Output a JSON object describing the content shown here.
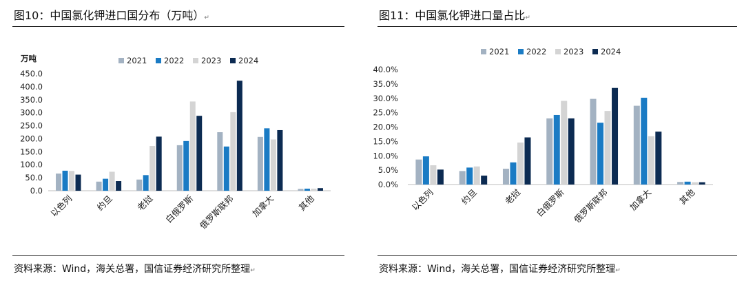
{
  "colors": {
    "2021": "#a3b2c2",
    "2022": "#1a7bc4",
    "2023": "#d4d4d4",
    "2024": "#0c2b52"
  },
  "left": {
    "title": "图10：中国氯化钾进口国分布（万吨）",
    "title_mark": "↵",
    "source": "资料来源：Wind，海关总署，国信证券经济研究所整理",
    "source_mark": "↵"
  },
  "right": {
    "title": "图11：中国氯化钾进口量占比",
    "title_mark": "↵",
    "source": "资料来源：Wind，海关总署，国信证券经济研究所整理",
    "source_mark": "↵"
  },
  "chart_data": [
    {
      "type": "bar",
      "unit_label": "万吨",
      "categories": [
        "以色列",
        "约旦",
        "老挝",
        "白俄罗斯",
        "俄罗斯联邦",
        "加拿大",
        "其他"
      ],
      "series": [
        {
          "name": "2021",
          "values": [
            66,
            35,
            43,
            175,
            225,
            207,
            7
          ]
        },
        {
          "name": "2022",
          "values": [
            77,
            46,
            60,
            191,
            170,
            240,
            8
          ]
        },
        {
          "name": "2023",
          "values": [
            76,
            73,
            172,
            343,
            302,
            197,
            8
          ]
        },
        {
          "name": "2024",
          "values": [
            62,
            37,
            208,
            288,
            423,
            233,
            10
          ]
        }
      ],
      "ylim": [
        0,
        450
      ],
      "yticks": [
        "0.0",
        "50.0",
        "100.0",
        "150.0",
        "200.0",
        "250.0",
        "300.0",
        "350.0",
        "400.0",
        "450.0"
      ],
      "legend": "top-center",
      "grid": false
    },
    {
      "type": "bar",
      "categories": [
        "以色列",
        "约旦",
        "老挝",
        "白俄罗斯",
        "俄罗斯联邦",
        "加拿大",
        "其他"
      ],
      "series": [
        {
          "name": "2021",
          "values": [
            8.7,
            4.7,
            5.5,
            23.0,
            29.8,
            27.4,
            0.9
          ]
        },
        {
          "name": "2022",
          "values": [
            9.8,
            5.9,
            7.7,
            24.2,
            21.5,
            30.2,
            1.0
          ]
        },
        {
          "name": "2023",
          "values": [
            6.7,
            6.3,
            14.6,
            29.1,
            25.6,
            16.8,
            0.8
          ]
        },
        {
          "name": "2024",
          "values": [
            5.2,
            3.1,
            16.4,
            23.0,
            33.6,
            18.4,
            0.8
          ]
        }
      ],
      "ylim": [
        0,
        40
      ],
      "yticks": [
        "0.0%",
        "5.0%",
        "10.0%",
        "15.0%",
        "20.0%",
        "25.0%",
        "30.0%",
        "35.0%",
        "40.0%"
      ],
      "legend": "top-center",
      "grid": false
    }
  ]
}
